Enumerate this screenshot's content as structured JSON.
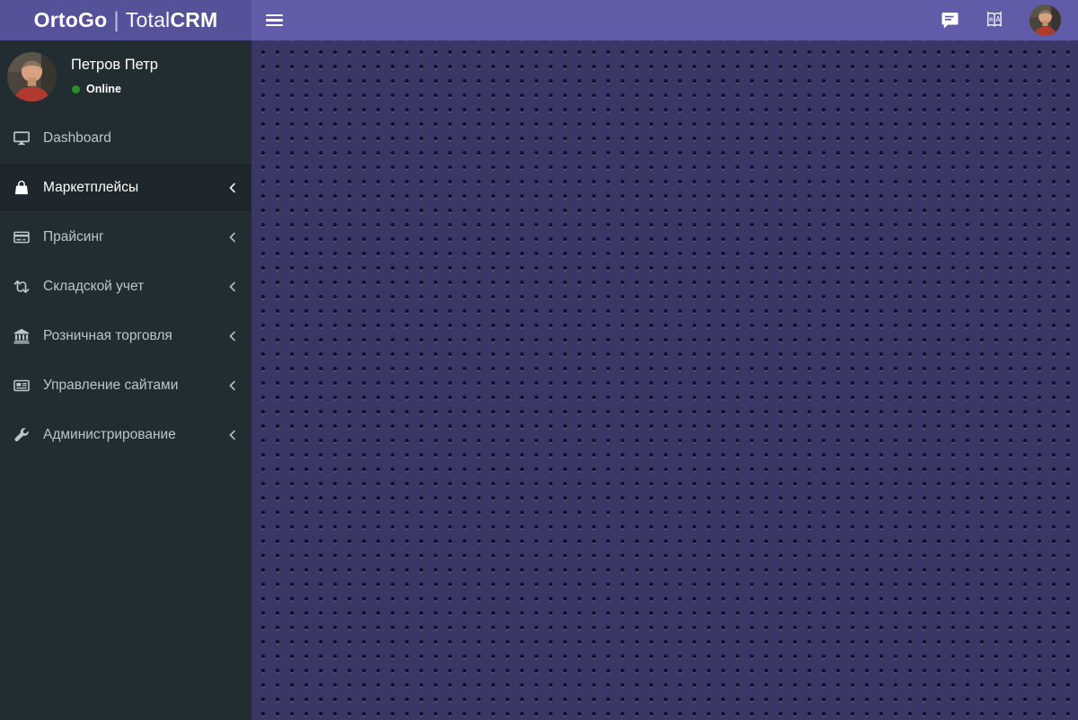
{
  "header": {
    "logo": {
      "name_bold": "OrtoGo",
      "divider": "|",
      "product_light": "Total",
      "product_bold": "CRM"
    },
    "icons": {
      "menu_toggle": "hamburger-icon",
      "messages": "chat-icon",
      "translate": "translate-icon",
      "avatar": "user-avatar"
    }
  },
  "sidebar": {
    "user": {
      "name": "Петров Петр",
      "status": "Online"
    },
    "menu": [
      {
        "key": "dashboard",
        "label": "Dashboard",
        "icon": "desktop-icon",
        "active": false,
        "has_chevron": false
      },
      {
        "key": "marketplaces",
        "label": "Маркетплейсы",
        "icon": "shopping-bag-icon",
        "active": true,
        "has_chevron": true
      },
      {
        "key": "pricing",
        "label": "Прайсинг",
        "icon": "credit-card-icon",
        "active": false,
        "has_chevron": true
      },
      {
        "key": "warehouse",
        "label": "Складской учет",
        "icon": "exchange-icon",
        "active": false,
        "has_chevron": true
      },
      {
        "key": "retail",
        "label": "Розничная торговля",
        "icon": "bank-icon",
        "active": false,
        "has_chevron": true
      },
      {
        "key": "site-management",
        "label": "Управление сайтами",
        "icon": "newspaper-icon",
        "active": false,
        "has_chevron": true
      },
      {
        "key": "administration",
        "label": "Администрирование",
        "icon": "wrench-icon",
        "active": false,
        "has_chevron": true
      }
    ]
  },
  "colors": {
    "navbar": "#605ca8",
    "logo_bg": "#555299",
    "sidebar_bg": "#222d32",
    "sidebar_text": "#b8c7ce",
    "active_item_bg": "#1e282c",
    "content_bg": "#3a3665",
    "content_dot": "#12112a",
    "online_green": "#2f8b2f"
  }
}
